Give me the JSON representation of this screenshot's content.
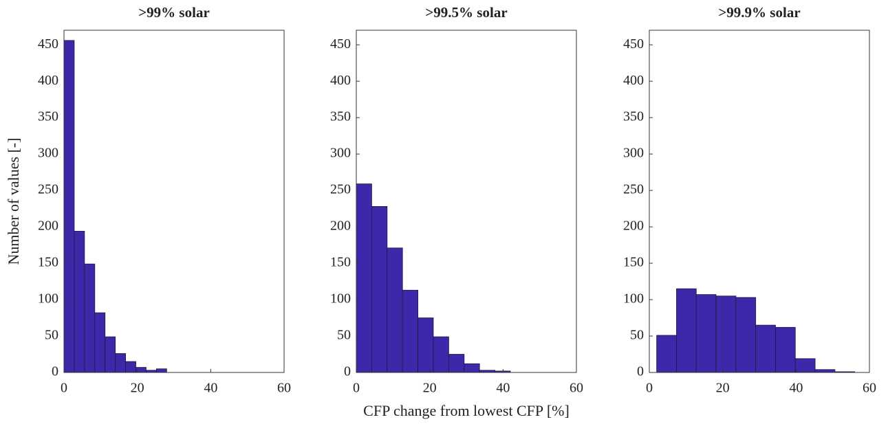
{
  "chart_data": [
    {
      "type": "histogram",
      "title": ">99% solar",
      "ylabel": "Number of values [-]",
      "color": "#3c28a8",
      "bins": [
        0,
        2.8,
        5.6,
        8.4,
        11.2,
        14,
        16.8,
        19.6,
        22.4,
        25.2,
        28
      ],
      "values": [
        456,
        194,
        149,
        82,
        49,
        26,
        15,
        7,
        3,
        5
      ],
      "xlim": [
        0,
        60
      ],
      "xticks": [
        0,
        20,
        40,
        60
      ],
      "ylim": [
        0,
        470
      ],
      "yticks": [
        0,
        50,
        100,
        150,
        200,
        250,
        300,
        350,
        400,
        450
      ]
    },
    {
      "type": "histogram",
      "title": ">99.5% solar",
      "xlabel": "CFP change from lowest CFP [%]",
      "color": "#3c28a8",
      "bins": [
        0,
        4.2,
        8.4,
        12.6,
        16.8,
        21,
        25.2,
        29.4,
        33.6,
        37.8,
        42
      ],
      "values": [
        259,
        228,
        171,
        113,
        75,
        49,
        25,
        12,
        3,
        2
      ],
      "xlim": [
        0,
        60
      ],
      "xticks": [
        0,
        20,
        40,
        60
      ],
      "ylim": [
        0,
        470
      ],
      "yticks": [
        0,
        50,
        100,
        150,
        200,
        250,
        300,
        350,
        400,
        450
      ]
    },
    {
      "type": "histogram",
      "title": ">99.9% solar",
      "color": "#3c28a8",
      "bins": [
        2,
        7.4,
        12.8,
        18.2,
        23.6,
        29,
        34.4,
        39.8,
        45.2,
        50.6,
        56
      ],
      "values": [
        51,
        115,
        107,
        105,
        103,
        65,
        62,
        19,
        4,
        1
      ],
      "xlim": [
        0,
        60
      ],
      "xticks": [
        0,
        20,
        40,
        60
      ],
      "ylim": [
        0,
        470
      ],
      "yticks": [
        0,
        50,
        100,
        150,
        200,
        250,
        300,
        350,
        400,
        450
      ]
    }
  ]
}
